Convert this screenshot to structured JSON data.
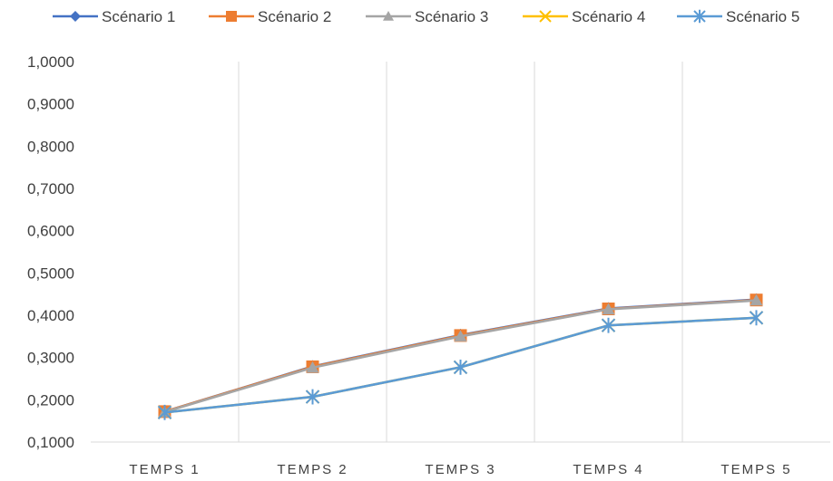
{
  "chart_data": {
    "type": "line",
    "title": "",
    "xlabel": "",
    "ylabel": "",
    "categories": [
      "TEMPS 1",
      "TEMPS 2",
      "TEMPS 3",
      "TEMPS 4",
      "TEMPS 5"
    ],
    "ylim": [
      0.1,
      1.0
    ],
    "yticks": [
      "0,1000",
      "0,2000",
      "0,3000",
      "0,4000",
      "0,5000",
      "0,6000",
      "0,7000",
      "0,8000",
      "0,9000",
      "1,0000"
    ],
    "grid": "vertical",
    "legend_position": "top",
    "series": [
      {
        "name": "Scénario 1",
        "color": "#4472C4",
        "marker": "diamond",
        "values": [
          0.172,
          0.279,
          0.353,
          0.416,
          0.437
        ]
      },
      {
        "name": "Scénario 2",
        "color": "#ED7D31",
        "marker": "square",
        "values": [
          0.172,
          0.278,
          0.352,
          0.415,
          0.436
        ]
      },
      {
        "name": "Scénario 3",
        "color": "#A5A5A5",
        "marker": "triangle",
        "values": [
          0.171,
          0.276,
          0.35,
          0.414,
          0.435
        ]
      },
      {
        "name": "Scénario 4",
        "color": "#FFC000",
        "marker": "x",
        "values": [
          0.17,
          0.207,
          0.277,
          0.376,
          0.394
        ]
      },
      {
        "name": "Scénario 5",
        "color": "#5B9BD5",
        "marker": "asterisk",
        "values": [
          0.17,
          0.207,
          0.277,
          0.376,
          0.394
        ]
      }
    ]
  }
}
